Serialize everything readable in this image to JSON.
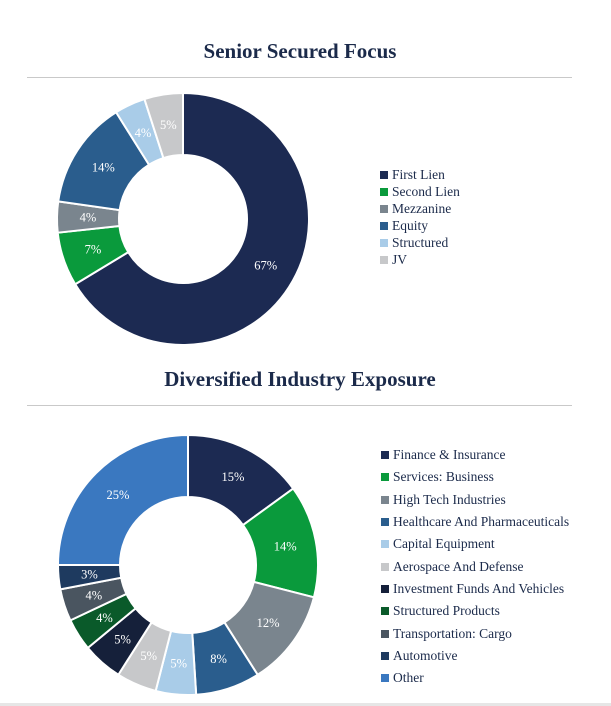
{
  "chart_data": [
    {
      "type": "pie",
      "title": "Senior Secured Focus",
      "categories": [
        "First Lien",
        "Second Lien",
        "Mezzanine",
        "Equity",
        "Structured",
        "JV"
      ],
      "values": [
        67,
        7,
        4,
        14,
        4,
        5
      ],
      "value_labels": [
        "67%",
        "7%",
        "4%",
        "14%",
        "4%",
        "5%"
      ],
      "colors": [
        "#1c2a52",
        "#0a9a3c",
        "#7a858e",
        "#2a5d8d",
        "#a9cce8",
        "#c7c8ca"
      ],
      "donut": true,
      "legend": "right"
    },
    {
      "type": "pie",
      "title": "Diversified Industry Exposure",
      "categories": [
        "Finance & Insurance",
        "Services: Business",
        "High Tech Industries",
        "Healthcare And Pharmaceuticals",
        "Capital Equipment",
        "Aerospace And Defense",
        "Investment Funds And Vehicles",
        "Structured Products",
        "Transportation: Cargo",
        "Automotive",
        "Other"
      ],
      "values": [
        15,
        14,
        12,
        8,
        5,
        5,
        5,
        4,
        4,
        3,
        25
      ],
      "value_labels": [
        "15%",
        "14%",
        "12%",
        "8%",
        "5%",
        "5%",
        "5%",
        "4%",
        "4%",
        "3%",
        "25%"
      ],
      "colors": [
        "#1c2a52",
        "#0a9a3c",
        "#7a858e",
        "#2a5d8d",
        "#a9cce8",
        "#c7c8ca",
        "#15203a",
        "#0a5a2a",
        "#4a5560",
        "#1e3a5f",
        "#3a78c0"
      ],
      "donut": true,
      "legend": "right"
    }
  ]
}
